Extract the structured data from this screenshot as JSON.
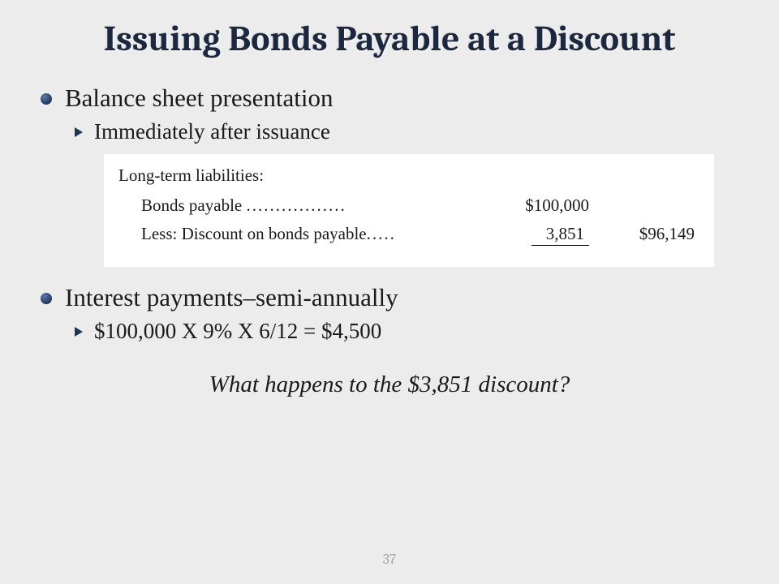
{
  "title": "Issuing Bonds Payable at a Discount",
  "bullets": {
    "b1": "Balance sheet presentation",
    "b1_sub": "Immediately after issuance",
    "b2": "Interest payments–semi-annually",
    "b2_sub": "$100,000 X 9% X 6/12 = $4,500"
  },
  "balance": {
    "header": "Long-term liabilities:",
    "line1_label": "Bonds payable",
    "line1_dots": ".................",
    "line1_col1": "$100,000",
    "line2_label": "Less: Discount on bonds payable",
    "line2_dots": ".....",
    "line2_col1": "3,851",
    "line2_col2": "$96,149"
  },
  "question": "What happens to the $3,851 discount?",
  "page_number": "37",
  "colors": {
    "background": "#ececec",
    "title": "#1a2940",
    "text": "#1a1a1a",
    "bullet_dark": "#1f3650",
    "box_bg": "#ffffff",
    "page_num": "#a8a8a8"
  },
  "fonts": {
    "title_size": 44,
    "l1_size": 31,
    "l2_size": 27,
    "box_size": 21,
    "question_size": 29,
    "page_num_size": 18
  }
}
